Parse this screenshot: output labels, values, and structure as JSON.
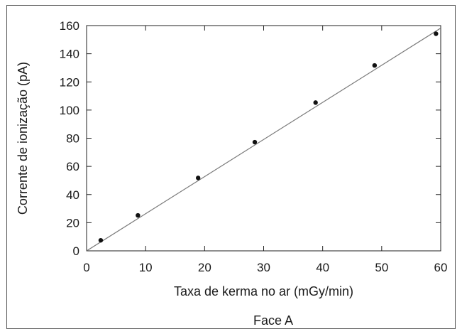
{
  "chart_data": {
    "type": "scatter",
    "caption": "Face A",
    "xlabel": "Taxa de kerma no ar (mGy/min)",
    "ylabel": "Corrente de ionização (pA)",
    "xlim": [
      0,
      60
    ],
    "ylim": [
      0,
      160
    ],
    "xticks": [
      0,
      10,
      20,
      30,
      40,
      50,
      60
    ],
    "yticks": [
      0,
      20,
      40,
      60,
      80,
      100,
      120,
      140,
      160
    ],
    "grid": false,
    "series": [
      {
        "points": [
          {
            "x": 2.4,
            "y": 7.5
          },
          {
            "x": 8.7,
            "y": 25.2
          },
          {
            "x": 18.9,
            "y": 51.8
          },
          {
            "x": 28.5,
            "y": 77.2
          },
          {
            "x": 38.8,
            "y": 105.3
          },
          {
            "x": 48.8,
            "y": 131.7
          },
          {
            "x": 59.2,
            "y": 154.2
          }
        ]
      }
    ],
    "fit_line": {
      "x": [
        0,
        60
      ],
      "y": [
        0,
        158.2
      ]
    },
    "colors": {
      "points": "#111111",
      "fit_line": "#7a7a7a",
      "axes": "#222222"
    }
  }
}
